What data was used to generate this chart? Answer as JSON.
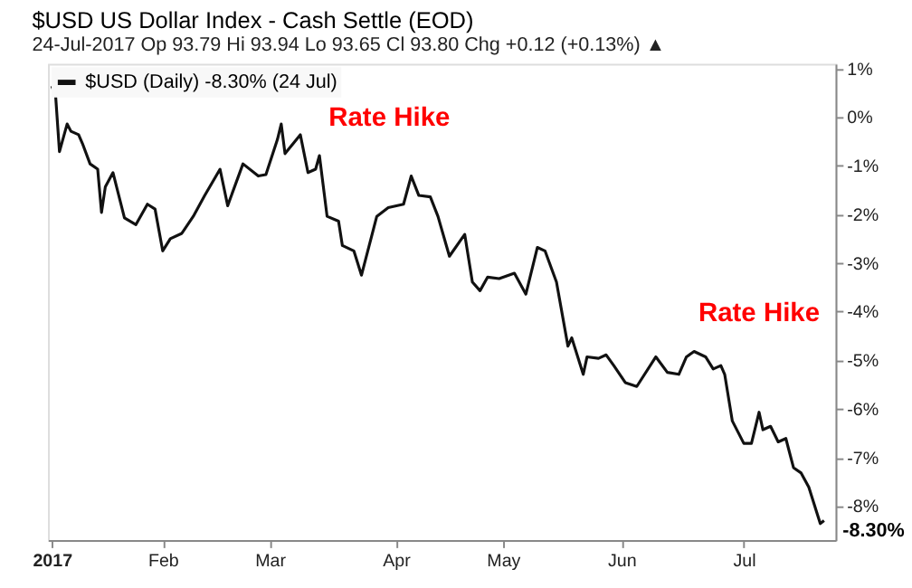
{
  "chart_data": {
    "type": "line",
    "title": "$USD US Dollar Index - Cash Settle (EOD)",
    "subtitle": "24-Jul-2017   Op 93.79  Hi 93.94  Lo 93.65  Cl 93.80  Chg +0.12 (+0.13%) ▲",
    "x": [
      "2017-01-03",
      "2017-01-04",
      "2017-01-05",
      "2017-01-07",
      "2017-01-08",
      "2017-01-10",
      "2017-01-11",
      "2017-01-13",
      "2017-01-15",
      "2017-01-16",
      "2017-01-17",
      "2017-01-19",
      "2017-01-22",
      "2017-01-25",
      "2017-01-28",
      "2017-01-30",
      "2017-02-01",
      "2017-02-03",
      "2017-02-06",
      "2017-02-09",
      "2017-02-12",
      "2017-02-16",
      "2017-02-18",
      "2017-02-22",
      "2017-02-26",
      "2017-02-28",
      "2017-03-03",
      "2017-03-04",
      "2017-03-05",
      "2017-03-09",
      "2017-03-11",
      "2017-03-13",
      "2017-03-14",
      "2017-03-16",
      "2017-03-19",
      "2017-03-20",
      "2017-03-23",
      "2017-03-25",
      "2017-03-29",
      "2017-04-01",
      "2017-04-05",
      "2017-04-07",
      "2017-04-09",
      "2017-04-12",
      "2017-04-14",
      "2017-04-17",
      "2017-04-21",
      "2017-04-23",
      "2017-04-25",
      "2017-04-27",
      "2017-04-30",
      "2017-05-04",
      "2017-05-07",
      "2017-05-10",
      "2017-05-12",
      "2017-05-15",
      "2017-05-18",
      "2017-05-19",
      "2017-05-22",
      "2017-05-23",
      "2017-05-26",
      "2017-05-28",
      "2017-05-30",
      "2017-06-02",
      "2017-06-05",
      "2017-06-10",
      "2017-06-13",
      "2017-06-16",
      "2017-06-18",
      "2017-06-20",
      "2017-06-23",
      "2017-06-25",
      "2017-06-27",
      "2017-06-28",
      "2017-06-30",
      "2017-07-03",
      "2017-07-05",
      "2017-07-07",
      "2017-07-08",
      "2017-07-10",
      "2017-07-12",
      "2017-07-14",
      "2017-07-16",
      "2017-07-18",
      "2017-07-20",
      "2017-07-23",
      "2017-07-24"
    ],
    "series": [
      {
        "name": "$USD (Daily) -8.30% (24 Jul)",
        "color": "#111111",
        "values": [
          0.64,
          0.43,
          -0.71,
          -0.14,
          -0.29,
          -0.36,
          -0.54,
          -0.96,
          -1.07,
          -1.96,
          -1.43,
          -1.14,
          -2.07,
          -2.21,
          -1.79,
          -1.89,
          -2.75,
          -2.5,
          -2.39,
          -2.04,
          -1.61,
          -1.07,
          -1.82,
          -0.96,
          -1.21,
          -1.18,
          -0.46,
          -0.14,
          -0.75,
          -0.36,
          -1.14,
          -1.07,
          -0.79,
          -2.04,
          -2.14,
          -2.64,
          -2.75,
          -3.25,
          -2.04,
          -1.86,
          -1.79,
          -1.21,
          -1.61,
          -1.64,
          -2.04,
          -2.86,
          -2.41,
          -3.39,
          -3.57,
          -3.29,
          -3.32,
          -3.21,
          -3.64,
          -2.68,
          -2.75,
          -3.39,
          -4.71,
          -4.54,
          -5.29,
          -4.93,
          -4.96,
          -4.89,
          -5.11,
          -5.46,
          -5.54,
          -4.93,
          -5.25,
          -5.29,
          -4.93,
          -4.82,
          -4.93,
          -5.18,
          -5.11,
          -5.29,
          -6.25,
          -6.71,
          -6.71,
          -6.07,
          -6.43,
          -6.36,
          -6.68,
          -6.61,
          -7.21,
          -7.32,
          -7.61,
          -8.36,
          -8.3
        ]
      }
    ],
    "xlim": [
      "2017-01-02",
      "2017-07-27"
    ],
    "xticks": [
      {
        "value": "2017-01-03",
        "label": "2017"
      },
      {
        "value": "2017-02-01",
        "label": "Feb"
      },
      {
        "value": "2017-03-01",
        "label": "Mar"
      },
      {
        "value": "2017-04-03",
        "label": "Apr"
      },
      {
        "value": "2017-05-01",
        "label": "May"
      },
      {
        "value": "2017-06-01",
        "label": "Jun"
      },
      {
        "value": "2017-07-03",
        "label": "Jul"
      }
    ],
    "ylim": [
      -8.7,
      1.1
    ],
    "yticks": [
      {
        "value": 1,
        "label": "1%"
      },
      {
        "value": 0,
        "label": "0%"
      },
      {
        "value": -1,
        "label": "-1%"
      },
      {
        "value": -2,
        "label": "-2%"
      },
      {
        "value": -3,
        "label": "-3%"
      },
      {
        "value": -4,
        "label": "-4%"
      },
      {
        "value": -5,
        "label": "-5%"
      },
      {
        "value": -6,
        "label": "-6%"
      },
      {
        "value": -7,
        "label": "-7%"
      },
      {
        "value": -8,
        "label": "-8%"
      }
    ],
    "annotations": [
      "Rate Hike",
      "Rate Hike",
      {
        "text": "-8.30%",
        "x": "2017-07-24",
        "y": -8.3
      }
    ],
    "legend": "top left"
  }
}
